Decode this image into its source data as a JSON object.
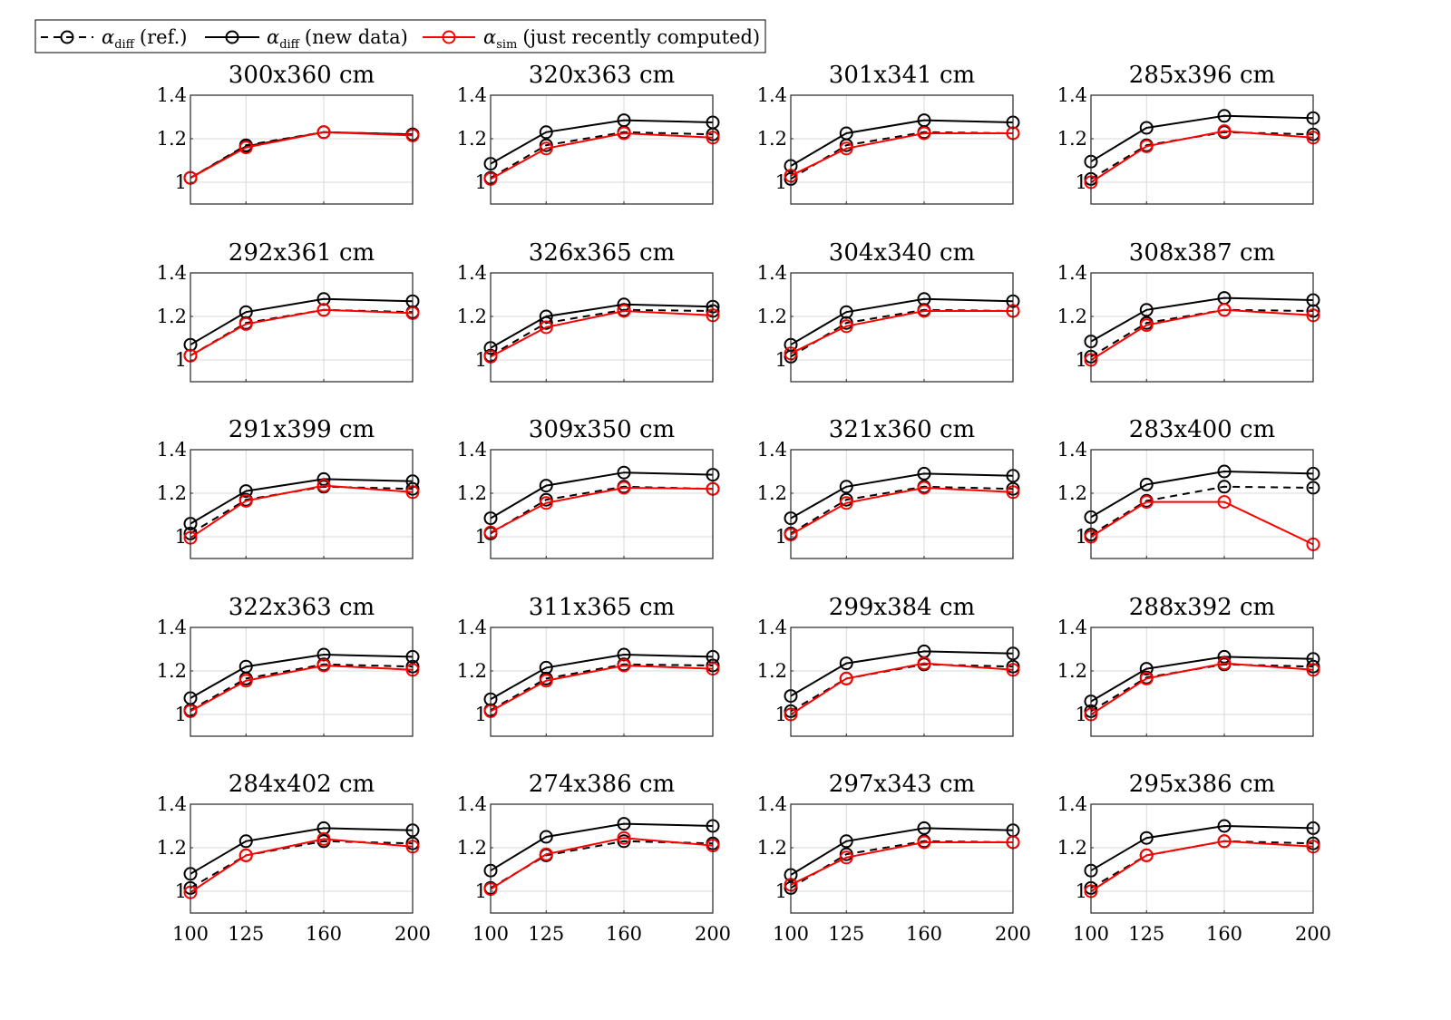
{
  "legend": {
    "items": [
      {
        "symbol": "α",
        "sub": "diff",
        "text": "(ref.)",
        "color": "#000000",
        "dash": true
      },
      {
        "symbol": "α",
        "sub": "diff",
        "text": "(new data)",
        "color": "#000000",
        "dash": false
      },
      {
        "symbol": "α",
        "sub": "sim",
        "text": "(just recently computed)",
        "color": "#ff0000",
        "dash": false
      }
    ]
  },
  "colors": {
    "ref": "#000000",
    "new": "#000000",
    "sim": "#ff0000",
    "grid": "#d9d9d9"
  },
  "chart_data": [
    {
      "type": "line",
      "title": "300x360 cm",
      "x": [
        100,
        125,
        160,
        200
      ],
      "xticks": [
        "100",
        "125",
        "160",
        "200"
      ],
      "yticks": [
        "1",
        "1.2",
        "1.4"
      ],
      "ylim": [
        0.9,
        1.4
      ],
      "grid": true,
      "series": [
        {
          "name": "α diff (ref.)",
          "values": [
            1.02,
            1.17,
            1.23,
            1.22
          ]
        },
        {
          "name": "α diff (new data)",
          "values": [
            1.02,
            1.165,
            1.23,
            1.22
          ]
        },
        {
          "name": "α sim (just recently computed)",
          "values": [
            1.02,
            1.16,
            1.23,
            1.215
          ]
        }
      ]
    },
    {
      "type": "line",
      "title": "320x363 cm",
      "x": [
        100,
        125,
        160,
        200
      ],
      "xticks": [
        "100",
        "125",
        "160",
        "200"
      ],
      "yticks": [
        "1",
        "1.2",
        "1.4"
      ],
      "ylim": [
        0.9,
        1.4
      ],
      "grid": true,
      "series": [
        {
          "name": "α diff (ref.)",
          "values": [
            1.02,
            1.17,
            1.23,
            1.22
          ]
        },
        {
          "name": "α diff (new data)",
          "values": [
            1.085,
            1.23,
            1.285,
            1.275
          ]
        },
        {
          "name": "α sim (just recently computed)",
          "values": [
            1.015,
            1.155,
            1.225,
            1.205
          ]
        }
      ]
    },
    {
      "type": "line",
      "title": "301x341 cm",
      "x": [
        100,
        125,
        160,
        200
      ],
      "xticks": [
        "100",
        "125",
        "160",
        "200"
      ],
      "yticks": [
        "1",
        "1.2",
        "1.4"
      ],
      "ylim": [
        0.9,
        1.4
      ],
      "grid": true,
      "series": [
        {
          "name": "α diff (ref.)",
          "values": [
            1.015,
            1.17,
            1.23,
            1.225
          ]
        },
        {
          "name": "α diff (new data)",
          "values": [
            1.075,
            1.225,
            1.285,
            1.275
          ]
        },
        {
          "name": "α sim (just recently computed)",
          "values": [
            1.03,
            1.155,
            1.225,
            1.225
          ]
        }
      ]
    },
    {
      "type": "line",
      "title": "285x396 cm",
      "x": [
        100,
        125,
        160,
        200
      ],
      "xticks": [
        "100",
        "125",
        "160",
        "200"
      ],
      "yticks": [
        "1",
        "1.2",
        "1.4"
      ],
      "ylim": [
        0.9,
        1.4
      ],
      "grid": true,
      "series": [
        {
          "name": "α diff (ref.)",
          "values": [
            1.015,
            1.17,
            1.23,
            1.22
          ]
        },
        {
          "name": "α diff (new data)",
          "values": [
            1.095,
            1.25,
            1.305,
            1.295
          ]
        },
        {
          "name": "α sim (just recently computed)",
          "values": [
            1.0,
            1.165,
            1.235,
            1.205
          ]
        }
      ]
    },
    {
      "type": "line",
      "title": "292x361 cm",
      "x": [
        100,
        125,
        160,
        200
      ],
      "xticks": [
        "100",
        "125",
        "160",
        "200"
      ],
      "yticks": [
        "1",
        "1.2",
        "1.4"
      ],
      "ylim": [
        0.9,
        1.4
      ],
      "grid": true,
      "series": [
        {
          "name": "α diff (ref.)",
          "values": [
            1.02,
            1.17,
            1.23,
            1.22
          ]
        },
        {
          "name": "α diff (new data)",
          "values": [
            1.07,
            1.22,
            1.28,
            1.27
          ]
        },
        {
          "name": "α sim (just recently computed)",
          "values": [
            1.02,
            1.165,
            1.23,
            1.215
          ]
        }
      ]
    },
    {
      "type": "line",
      "title": "326x365 cm",
      "x": [
        100,
        125,
        160,
        200
      ],
      "xticks": [
        "100",
        "125",
        "160",
        "200"
      ],
      "yticks": [
        "1",
        "1.2",
        "1.4"
      ],
      "ylim": [
        0.9,
        1.4
      ],
      "grid": true,
      "series": [
        {
          "name": "α diff (ref.)",
          "values": [
            1.02,
            1.17,
            1.23,
            1.225
          ]
        },
        {
          "name": "α diff (new data)",
          "values": [
            1.055,
            1.2,
            1.255,
            1.245
          ]
        },
        {
          "name": "α sim (just recently computed)",
          "values": [
            1.015,
            1.15,
            1.225,
            1.205
          ]
        }
      ]
    },
    {
      "type": "line",
      "title": "304x340 cm",
      "x": [
        100,
        125,
        160,
        200
      ],
      "xticks": [
        "100",
        "125",
        "160",
        "200"
      ],
      "yticks": [
        "1",
        "1.2",
        "1.4"
      ],
      "ylim": [
        0.9,
        1.4
      ],
      "grid": true,
      "series": [
        {
          "name": "α diff (ref.)",
          "values": [
            1.015,
            1.17,
            1.23,
            1.225
          ]
        },
        {
          "name": "α diff (new data)",
          "values": [
            1.07,
            1.22,
            1.28,
            1.27
          ]
        },
        {
          "name": "α sim (just recently computed)",
          "values": [
            1.03,
            1.155,
            1.225,
            1.225
          ]
        }
      ]
    },
    {
      "type": "line",
      "title": "308x387 cm",
      "x": [
        100,
        125,
        160,
        200
      ],
      "xticks": [
        "100",
        "125",
        "160",
        "200"
      ],
      "yticks": [
        "1",
        "1.2",
        "1.4"
      ],
      "ylim": [
        0.9,
        1.4
      ],
      "grid": true,
      "series": [
        {
          "name": "α diff (ref.)",
          "values": [
            1.015,
            1.17,
            1.23,
            1.225
          ]
        },
        {
          "name": "α diff (new data)",
          "values": [
            1.085,
            1.23,
            1.285,
            1.275
          ]
        },
        {
          "name": "α sim (just recently computed)",
          "values": [
            1.0,
            1.16,
            1.23,
            1.205
          ]
        }
      ]
    },
    {
      "type": "line",
      "title": "291x399 cm",
      "x": [
        100,
        125,
        160,
        200
      ],
      "xticks": [
        "100",
        "125",
        "160",
        "200"
      ],
      "yticks": [
        "1",
        "1.2",
        "1.4"
      ],
      "ylim": [
        0.9,
        1.4
      ],
      "grid": true,
      "series": [
        {
          "name": "α diff (ref.)",
          "values": [
            1.015,
            1.17,
            1.23,
            1.22
          ]
        },
        {
          "name": "α diff (new data)",
          "values": [
            1.06,
            1.21,
            1.265,
            1.255
          ]
        },
        {
          "name": "α sim (just recently computed)",
          "values": [
            0.995,
            1.165,
            1.235,
            1.205
          ]
        }
      ]
    },
    {
      "type": "line",
      "title": "309x350 cm",
      "x": [
        100,
        125,
        160,
        200
      ],
      "xticks": [
        "100",
        "125",
        "160",
        "200"
      ],
      "yticks": [
        "1",
        "1.2",
        "1.4"
      ],
      "ylim": [
        0.9,
        1.4
      ],
      "grid": true,
      "series": [
        {
          "name": "α diff (ref.)",
          "values": [
            1.015,
            1.17,
            1.23,
            1.22
          ]
        },
        {
          "name": "α diff (new data)",
          "values": [
            1.085,
            1.235,
            1.295,
            1.285
          ]
        },
        {
          "name": "α sim (just recently computed)",
          "values": [
            1.02,
            1.155,
            1.225,
            1.22
          ]
        }
      ]
    },
    {
      "type": "line",
      "title": "321x360 cm",
      "x": [
        100,
        125,
        160,
        200
      ],
      "xticks": [
        "100",
        "125",
        "160",
        "200"
      ],
      "yticks": [
        "1",
        "1.2",
        "1.4"
      ],
      "ylim": [
        0.9,
        1.4
      ],
      "grid": true,
      "series": [
        {
          "name": "α diff (ref.)",
          "values": [
            1.015,
            1.17,
            1.23,
            1.22
          ]
        },
        {
          "name": "α diff (new data)",
          "values": [
            1.085,
            1.23,
            1.29,
            1.28
          ]
        },
        {
          "name": "α sim (just recently computed)",
          "values": [
            1.01,
            1.155,
            1.225,
            1.205
          ]
        }
      ]
    },
    {
      "type": "line",
      "title": "283x400 cm",
      "x": [
        100,
        125,
        160,
        200
      ],
      "xticks": [
        "100",
        "125",
        "160",
        "200"
      ],
      "yticks": [
        "1",
        "1.2",
        "1.4"
      ],
      "ylim": [
        0.9,
        1.4
      ],
      "grid": true,
      "series": [
        {
          "name": "α diff (ref.)",
          "values": [
            1.01,
            1.165,
            1.23,
            1.225
          ]
        },
        {
          "name": "α diff (new data)",
          "values": [
            1.09,
            1.24,
            1.3,
            1.29
          ]
        },
        {
          "name": "α sim (just recently computed)",
          "values": [
            1.0,
            1.16,
            1.16,
            0.965
          ]
        }
      ]
    },
    {
      "type": "line",
      "title": "322x363 cm",
      "x": [
        100,
        125,
        160,
        200
      ],
      "xticks": [
        "100",
        "125",
        "160",
        "200"
      ],
      "yticks": [
        "1",
        "1.2",
        "1.4"
      ],
      "ylim": [
        0.9,
        1.4
      ],
      "grid": true,
      "series": [
        {
          "name": "α diff (ref.)",
          "values": [
            1.02,
            1.165,
            1.23,
            1.22
          ]
        },
        {
          "name": "α diff (new data)",
          "values": [
            1.075,
            1.22,
            1.275,
            1.265
          ]
        },
        {
          "name": "α sim (just recently computed)",
          "values": [
            1.015,
            1.155,
            1.225,
            1.205
          ]
        }
      ]
    },
    {
      "type": "line",
      "title": "311x365 cm",
      "x": [
        100,
        125,
        160,
        200
      ],
      "xticks": [
        "100",
        "125",
        "160",
        "200"
      ],
      "yticks": [
        "1",
        "1.2",
        "1.4"
      ],
      "ylim": [
        0.9,
        1.4
      ],
      "grid": true,
      "series": [
        {
          "name": "α diff (ref.)",
          "values": [
            1.02,
            1.165,
            1.23,
            1.225
          ]
        },
        {
          "name": "α diff (new data)",
          "values": [
            1.07,
            1.215,
            1.275,
            1.265
          ]
        },
        {
          "name": "α sim (just recently computed)",
          "values": [
            1.015,
            1.155,
            1.225,
            1.21
          ]
        }
      ]
    },
    {
      "type": "line",
      "title": "299x384 cm",
      "x": [
        100,
        125,
        160,
        200
      ],
      "xticks": [
        "100",
        "125",
        "160",
        "200"
      ],
      "yticks": [
        "1",
        "1.2",
        "1.4"
      ],
      "ylim": [
        0.9,
        1.4
      ],
      "grid": true,
      "series": [
        {
          "name": "α diff (ref.)",
          "values": [
            1.015,
            1.165,
            1.23,
            1.22
          ]
        },
        {
          "name": "α diff (new data)",
          "values": [
            1.085,
            1.235,
            1.29,
            1.28
          ]
        },
        {
          "name": "α sim (just recently computed)",
          "values": [
            1.0,
            1.165,
            1.235,
            1.205
          ]
        }
      ]
    },
    {
      "type": "line",
      "title": "288x392 cm",
      "x": [
        100,
        125,
        160,
        200
      ],
      "xticks": [
        "100",
        "125",
        "160",
        "200"
      ],
      "yticks": [
        "1",
        "1.2",
        "1.4"
      ],
      "ylim": [
        0.9,
        1.4
      ],
      "grid": true,
      "series": [
        {
          "name": "α diff (ref.)",
          "values": [
            1.015,
            1.17,
            1.23,
            1.22
          ]
        },
        {
          "name": "α diff (new data)",
          "values": [
            1.06,
            1.21,
            1.265,
            1.255
          ]
        },
        {
          "name": "α sim (just recently computed)",
          "values": [
            1.0,
            1.165,
            1.235,
            1.205
          ]
        }
      ]
    },
    {
      "type": "line",
      "title": "284x402 cm",
      "x": [
        100,
        125,
        160,
        200
      ],
      "xticks": [
        "100",
        "125",
        "160",
        "200"
      ],
      "yticks": [
        "1",
        "1.2",
        "1.4"
      ],
      "ylim": [
        0.9,
        1.4
      ],
      "grid": true,
      "series": [
        {
          "name": "α diff (ref.)",
          "values": [
            1.015,
            1.165,
            1.23,
            1.22
          ]
        },
        {
          "name": "α diff (new data)",
          "values": [
            1.08,
            1.23,
            1.29,
            1.28
          ]
        },
        {
          "name": "α sim (just recently computed)",
          "values": [
            0.995,
            1.165,
            1.24,
            1.205
          ]
        }
      ]
    },
    {
      "type": "line",
      "title": "274x386 cm",
      "x": [
        100,
        125,
        160,
        200
      ],
      "xticks": [
        "100",
        "125",
        "160",
        "200"
      ],
      "yticks": [
        "1",
        "1.2",
        "1.4"
      ],
      "ylim": [
        0.9,
        1.4
      ],
      "grid": true,
      "series": [
        {
          "name": "α diff (ref.)",
          "values": [
            1.015,
            1.165,
            1.23,
            1.22
          ]
        },
        {
          "name": "α diff (new data)",
          "values": [
            1.095,
            1.25,
            1.31,
            1.3
          ]
        },
        {
          "name": "α sim (just recently computed)",
          "values": [
            1.01,
            1.17,
            1.245,
            1.21
          ]
        }
      ]
    },
    {
      "type": "line",
      "title": "297x343 cm",
      "x": [
        100,
        125,
        160,
        200
      ],
      "xticks": [
        "100",
        "125",
        "160",
        "200"
      ],
      "yticks": [
        "1",
        "1.2",
        "1.4"
      ],
      "ylim": [
        0.9,
        1.4
      ],
      "grid": true,
      "series": [
        {
          "name": "α diff (ref.)",
          "values": [
            1.015,
            1.17,
            1.23,
            1.225
          ]
        },
        {
          "name": "α diff (new data)",
          "values": [
            1.075,
            1.23,
            1.29,
            1.28
          ]
        },
        {
          "name": "α sim (just recently computed)",
          "values": [
            1.03,
            1.155,
            1.225,
            1.225
          ]
        }
      ]
    },
    {
      "type": "line",
      "title": "295x386 cm",
      "x": [
        100,
        125,
        160,
        200
      ],
      "xticks": [
        "100",
        "125",
        "160",
        "200"
      ],
      "yticks": [
        "1",
        "1.2",
        "1.4"
      ],
      "ylim": [
        0.9,
        1.4
      ],
      "grid": true,
      "series": [
        {
          "name": "α diff (ref.)",
          "values": [
            1.015,
            1.165,
            1.23,
            1.22
          ]
        },
        {
          "name": "α diff (new data)",
          "values": [
            1.095,
            1.245,
            1.3,
            1.29
          ]
        },
        {
          "name": "α sim (just recently computed)",
          "values": [
            1.0,
            1.165,
            1.23,
            1.205
          ]
        }
      ]
    }
  ]
}
